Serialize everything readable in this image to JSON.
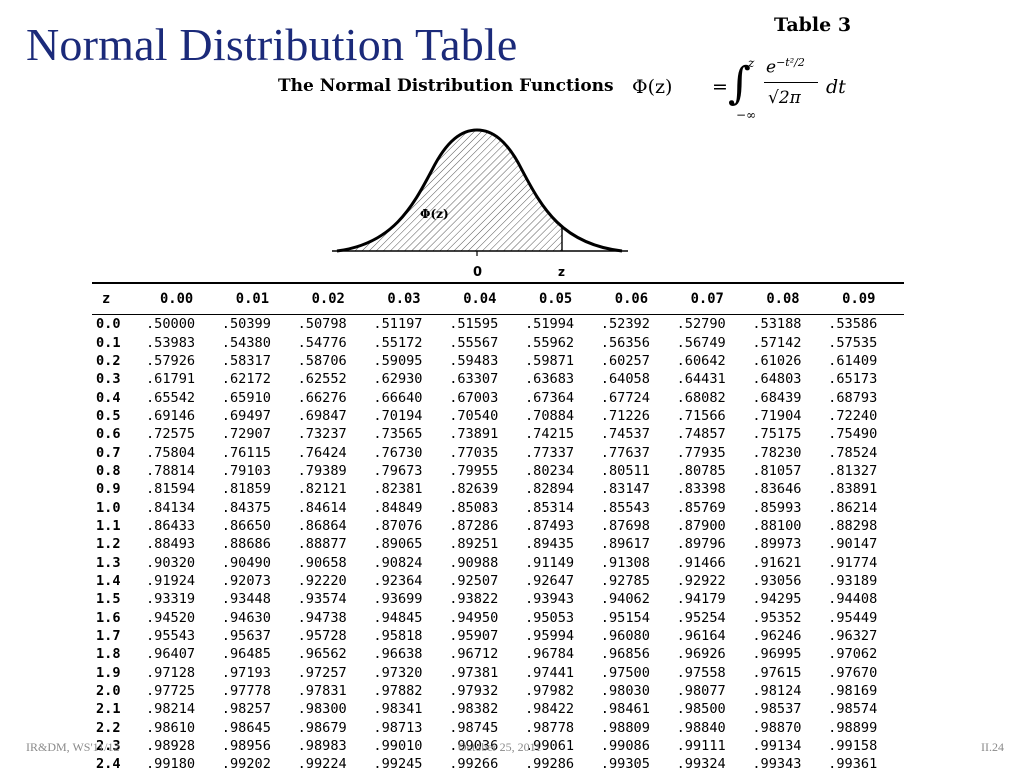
{
  "slide": {
    "title": "Normal Distribution Table",
    "footer_left": "IR&DM, WS'11/12",
    "footer_center": "October 25, 2011",
    "footer_right": "II.24"
  },
  "scan": {
    "table_label": "Table 3",
    "subtitle": "The Normal Distribution Functions",
    "formula": {
      "lhs": "Φ(z)",
      "equals": "=",
      "integral": "∫",
      "upper": "z",
      "lower": "−∞",
      "numerator_base": "e",
      "numerator_exp": "−t²/2",
      "denominator": "√2π",
      "differential": "dt"
    },
    "figure": {
      "area_label": "Φ(z)",
      "label_zero": "0",
      "label_z": "z"
    },
    "table": {
      "header": [
        "z",
        "0.00",
        "0.01",
        "0.02",
        "0.03",
        "0.04",
        "0.05",
        "0.06",
        "0.07",
        "0.08",
        "0.09"
      ],
      "rows": [
        [
          "0.0",
          ".50000",
          ".50399",
          ".50798",
          ".51197",
          ".51595",
          ".51994",
          ".52392",
          ".52790",
          ".53188",
          ".53586"
        ],
        [
          "0.1",
          ".53983",
          ".54380",
          ".54776",
          ".55172",
          ".55567",
          ".55962",
          ".56356",
          ".56749",
          ".57142",
          ".57535"
        ],
        [
          "0.2",
          ".57926",
          ".58317",
          ".58706",
          ".59095",
          ".59483",
          ".59871",
          ".60257",
          ".60642",
          ".61026",
          ".61409"
        ],
        [
          "0.3",
          ".61791",
          ".62172",
          ".62552",
          ".62930",
          ".63307",
          ".63683",
          ".64058",
          ".64431",
          ".64803",
          ".65173"
        ],
        [
          "0.4",
          ".65542",
          ".65910",
          ".66276",
          ".66640",
          ".67003",
          ".67364",
          ".67724",
          ".68082",
          ".68439",
          ".68793"
        ],
        [
          "0.5",
          ".69146",
          ".69497",
          ".69847",
          ".70194",
          ".70540",
          ".70884",
          ".71226",
          ".71566",
          ".71904",
          ".72240"
        ],
        [
          "0.6",
          ".72575",
          ".72907",
          ".73237",
          ".73565",
          ".73891",
          ".74215",
          ".74537",
          ".74857",
          ".75175",
          ".75490"
        ],
        [
          "0.7",
          ".75804",
          ".76115",
          ".76424",
          ".76730",
          ".77035",
          ".77337",
          ".77637",
          ".77935",
          ".78230",
          ".78524"
        ],
        [
          "0.8",
          ".78814",
          ".79103",
          ".79389",
          ".79673",
          ".79955",
          ".80234",
          ".80511",
          ".80785",
          ".81057",
          ".81327"
        ],
        [
          "0.9",
          ".81594",
          ".81859",
          ".82121",
          ".82381",
          ".82639",
          ".82894",
          ".83147",
          ".83398",
          ".83646",
          ".83891"
        ],
        [
          "1.0",
          ".84134",
          ".84375",
          ".84614",
          ".84849",
          ".85083",
          ".85314",
          ".85543",
          ".85769",
          ".85993",
          ".86214"
        ],
        [
          "1.1",
          ".86433",
          ".86650",
          ".86864",
          ".87076",
          ".87286",
          ".87493",
          ".87698",
          ".87900",
          ".88100",
          ".88298"
        ],
        [
          "1.2",
          ".88493",
          ".88686",
          ".88877",
          ".89065",
          ".89251",
          ".89435",
          ".89617",
          ".89796",
          ".89973",
          ".90147"
        ],
        [
          "1.3",
          ".90320",
          ".90490",
          ".90658",
          ".90824",
          ".90988",
          ".91149",
          ".91308",
          ".91466",
          ".91621",
          ".91774"
        ],
        [
          "1.4",
          ".91924",
          ".92073",
          ".92220",
          ".92364",
          ".92507",
          ".92647",
          ".92785",
          ".92922",
          ".93056",
          ".93189"
        ],
        [
          "1.5",
          ".93319",
          ".93448",
          ".93574",
          ".93699",
          ".93822",
          ".93943",
          ".94062",
          ".94179",
          ".94295",
          ".94408"
        ],
        [
          "1.6",
          ".94520",
          ".94630",
          ".94738",
          ".94845",
          ".94950",
          ".95053",
          ".95154",
          ".95254",
          ".95352",
          ".95449"
        ],
        [
          "1.7",
          ".95543",
          ".95637",
          ".95728",
          ".95818",
          ".95907",
          ".95994",
          ".96080",
          ".96164",
          ".96246",
          ".96327"
        ],
        [
          "1.8",
          ".96407",
          ".96485",
          ".96562",
          ".96638",
          ".96712",
          ".96784",
          ".96856",
          ".96926",
          ".96995",
          ".97062"
        ],
        [
          "1.9",
          ".97128",
          ".97193",
          ".97257",
          ".97320",
          ".97381",
          ".97441",
          ".97500",
          ".97558",
          ".97615",
          ".97670"
        ],
        [
          "2.0",
          ".97725",
          ".97778",
          ".97831",
          ".97882",
          ".97932",
          ".97982",
          ".98030",
          ".98077",
          ".98124",
          ".98169"
        ],
        [
          "2.1",
          ".98214",
          ".98257",
          ".98300",
          ".98341",
          ".98382",
          ".98422",
          ".98461",
          ".98500",
          ".98537",
          ".98574"
        ],
        [
          "2.2",
          ".98610",
          ".98645",
          ".98679",
          ".98713",
          ".98745",
          ".98778",
          ".98809",
          ".98840",
          ".98870",
          ".98899"
        ],
        [
          "2.3",
          ".98928",
          ".98956",
          ".98983",
          ".99010",
          ".99036",
          ".99061",
          ".99086",
          ".99111",
          ".99134",
          ".99158"
        ],
        [
          "2.4",
          ".99180",
          ".99202",
          ".99224",
          ".99245",
          ".99266",
          ".99286",
          ".99305",
          ".99324",
          ".99343",
          ".99361"
        ]
      ]
    }
  }
}
